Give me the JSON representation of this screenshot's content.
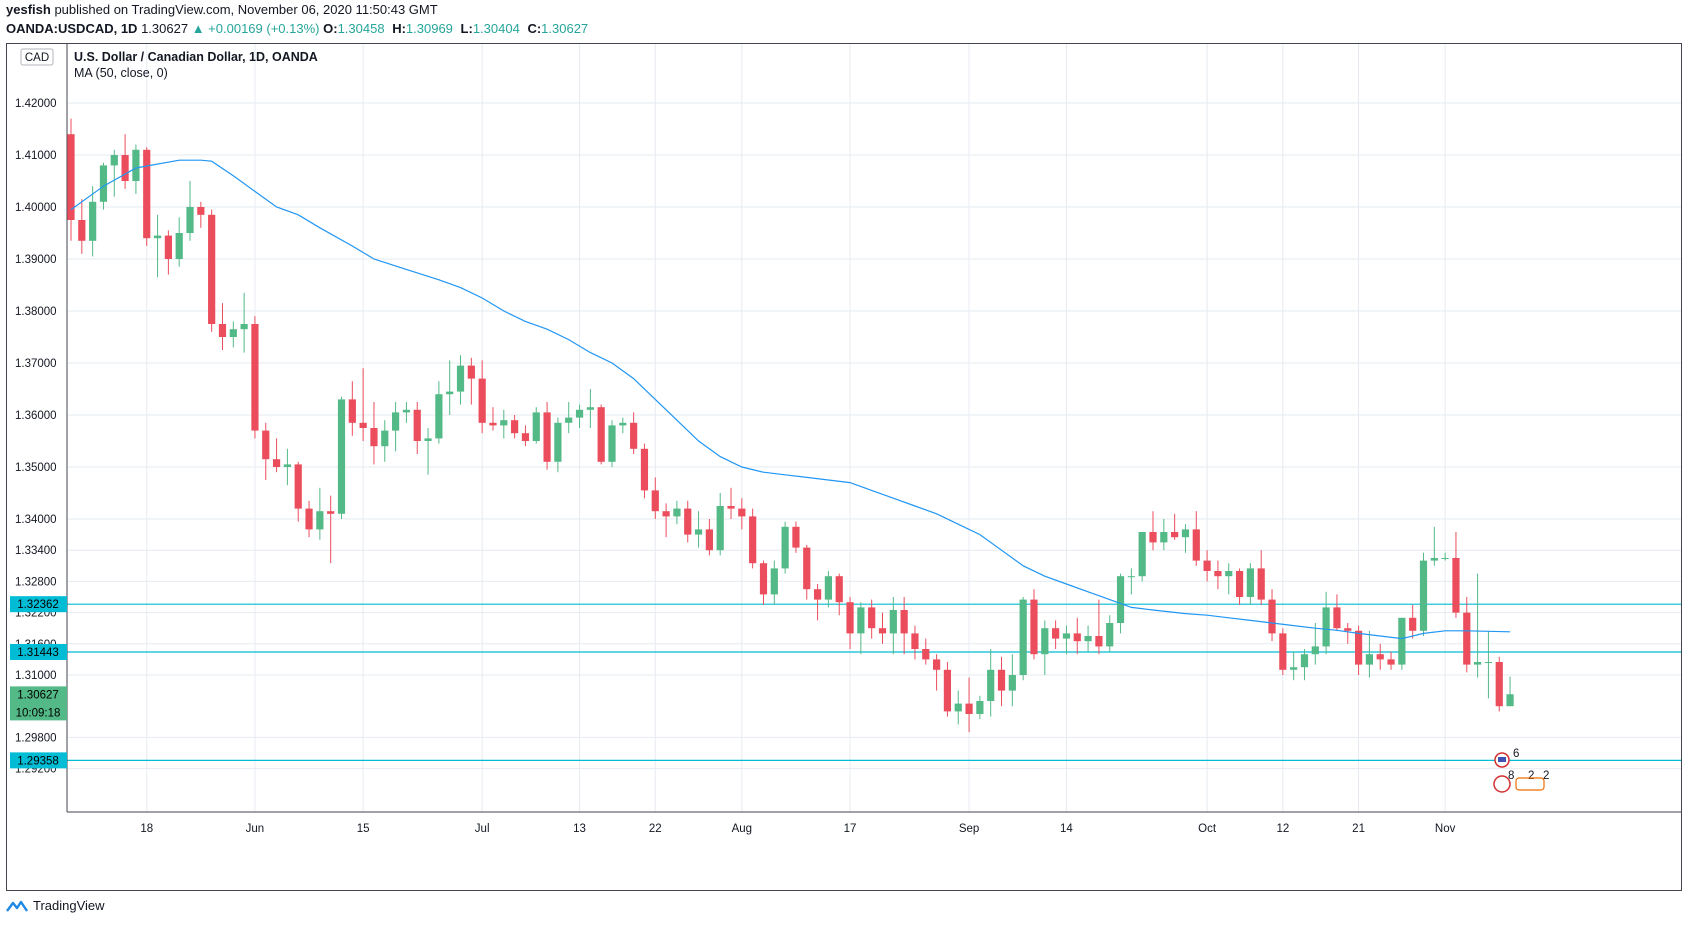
{
  "header": {
    "user": "yesfish",
    "published_text": "published on TradingView.com, November 06, 2020 11:50:43 GMT",
    "symbol": "OANDA:USDCAD, 1D",
    "last": "1.30627",
    "change": "▲ +0.00169 (+0.13%)",
    "o_label": "O:",
    "o_value": "1.30458",
    "h_label": "H:",
    "h_value": "1.30969",
    "l_label": "L:",
    "l_value": "1.30404",
    "c_label": "C:",
    "c_value": "1.30627"
  },
  "footer": {
    "brand": "TradingView"
  },
  "colors": {
    "up": "#53b987",
    "down": "#eb4d5c",
    "ma": "#2196f3",
    "hline": "#00bcd4",
    "price_tag": "#53b987",
    "grid": "#e6ebf1",
    "border": "#434651"
  },
  "chart_data": {
    "type": "candlestick",
    "title": "U.S. Dollar / Canadian Dollar, 1D, OANDA",
    "indicator_label": "MA (50, close, 0)",
    "currency_label": "CAD",
    "y_axis_labels": [
      "1.42000",
      "1.41000",
      "1.40000",
      "1.39000",
      "1.38000",
      "1.37000",
      "1.36000",
      "1.35000",
      "1.34000",
      "1.33400",
      "1.32800",
      "1.32200",
      "1.31600",
      "1.31000",
      "1.29800",
      "1.29200"
    ],
    "y_axis_ticks": [
      1.42,
      1.41,
      1.4,
      1.39,
      1.38,
      1.37,
      1.36,
      1.35,
      1.34,
      1.334,
      1.328,
      1.322,
      1.316,
      1.31,
      1.298,
      1.292
    ],
    "x_axis_labels": [
      {
        "label": "18",
        "index": 7
      },
      {
        "label": "Jun",
        "index": 17
      },
      {
        "label": "15",
        "index": 27
      },
      {
        "label": "Jul",
        "index": 38
      },
      {
        "label": "13",
        "index": 47
      },
      {
        "label": "22",
        "index": 54
      },
      {
        "label": "Aug",
        "index": 62
      },
      {
        "label": "17",
        "index": 72
      },
      {
        "label": "Sep",
        "index": 83
      },
      {
        "label": "14",
        "index": 92
      },
      {
        "label": "Oct",
        "index": 105
      },
      {
        "label": "12",
        "index": 112
      },
      {
        "label": "21",
        "index": 119
      },
      {
        "label": "Nov",
        "index": 127
      }
    ],
    "horizontal_lines": [
      {
        "label": "1.32362",
        "value": 1.32362
      },
      {
        "label": "1.31443",
        "value": 1.31443
      },
      {
        "label": "1.29358",
        "value": 1.29358
      }
    ],
    "last_price": {
      "label": "1.30627",
      "value": 1.30627,
      "countdown": "10:09:18"
    },
    "event_badges": [
      {
        "label": "6"
      },
      {
        "label": "8"
      },
      {
        "label": "2"
      },
      {
        "label": "2"
      }
    ],
    "candles": [
      [
        1.414,
        1.417,
        1.3935,
        1.3975
      ],
      [
        1.3975,
        1.4015,
        1.391,
        1.3935
      ],
      [
        1.3935,
        1.404,
        1.3905,
        1.401
      ],
      [
        1.401,
        1.4085,
        1.3995,
        1.408
      ],
      [
        1.408,
        1.411,
        1.402,
        1.41
      ],
      [
        1.41,
        1.414,
        1.4035,
        1.405
      ],
      [
        1.405,
        1.412,
        1.4025,
        1.411
      ],
      [
        1.411,
        1.4115,
        1.3925,
        1.394
      ],
      [
        1.394,
        1.3985,
        1.3865,
        1.3945
      ],
      [
        1.3945,
        1.3955,
        1.387,
        1.39
      ],
      [
        1.39,
        1.398,
        1.3885,
        1.395
      ],
      [
        1.395,
        1.405,
        1.3935,
        1.4
      ],
      [
        1.4,
        1.401,
        1.396,
        1.3985
      ],
      [
        1.3985,
        1.3995,
        1.376,
        1.3775
      ],
      [
        1.3775,
        1.3815,
        1.3725,
        1.375
      ],
      [
        1.375,
        1.378,
        1.373,
        1.3765
      ],
      [
        1.3765,
        1.3835,
        1.372,
        1.3775
      ],
      [
        1.3775,
        1.379,
        1.3555,
        1.357
      ],
      [
        1.357,
        1.3585,
        1.3475,
        1.3515
      ],
      [
        1.3515,
        1.3555,
        1.349,
        1.35
      ],
      [
        1.35,
        1.3535,
        1.3465,
        1.3505
      ],
      [
        1.3505,
        1.351,
        1.3395,
        1.342
      ],
      [
        1.342,
        1.3435,
        1.3365,
        1.338
      ],
      [
        1.338,
        1.346,
        1.336,
        1.3415
      ],
      [
        1.3415,
        1.3445,
        1.3315,
        1.341
      ],
      [
        1.341,
        1.3635,
        1.34,
        1.363
      ],
      [
        1.363,
        1.3665,
        1.356,
        1.3585
      ],
      [
        1.3585,
        1.369,
        1.355,
        1.3575
      ],
      [
        1.3575,
        1.3625,
        1.3505,
        1.354
      ],
      [
        1.354,
        1.359,
        1.351,
        1.357
      ],
      [
        1.357,
        1.3625,
        1.353,
        1.3605
      ],
      [
        1.3605,
        1.3625,
        1.3585,
        1.361
      ],
      [
        1.361,
        1.3625,
        1.3525,
        1.355
      ],
      [
        1.355,
        1.3575,
        1.3485,
        1.3555
      ],
      [
        1.3555,
        1.3665,
        1.3545,
        1.364
      ],
      [
        1.364,
        1.3705,
        1.36,
        1.3645
      ],
      [
        1.3645,
        1.3715,
        1.362,
        1.3695
      ],
      [
        1.3695,
        1.371,
        1.362,
        1.367
      ],
      [
        1.367,
        1.3705,
        1.3565,
        1.3585
      ],
      [
        1.3585,
        1.3615,
        1.357,
        1.358
      ],
      [
        1.358,
        1.361,
        1.3555,
        1.359
      ],
      [
        1.359,
        1.36,
        1.3555,
        1.3565
      ],
      [
        1.3565,
        1.358,
        1.354,
        1.355
      ],
      [
        1.355,
        1.3615,
        1.3545,
        1.3605
      ],
      [
        1.3605,
        1.3625,
        1.3495,
        1.351
      ],
      [
        1.351,
        1.3595,
        1.349,
        1.3585
      ],
      [
        1.3585,
        1.3625,
        1.3565,
        1.3595
      ],
      [
        1.3595,
        1.362,
        1.3575,
        1.361
      ],
      [
        1.361,
        1.365,
        1.3575,
        1.3615
      ],
      [
        1.3615,
        1.362,
        1.3505,
        1.351
      ],
      [
        1.351,
        1.359,
        1.35,
        1.358
      ],
      [
        1.358,
        1.3595,
        1.3565,
        1.3585
      ],
      [
        1.3585,
        1.3605,
        1.3525,
        1.3535
      ],
      [
        1.3535,
        1.3545,
        1.344,
        1.3455
      ],
      [
        1.3455,
        1.348,
        1.34,
        1.3415
      ],
      [
        1.3415,
        1.343,
        1.3365,
        1.3405
      ],
      [
        1.3405,
        1.3435,
        1.339,
        1.342
      ],
      [
        1.342,
        1.3435,
        1.3355,
        1.337
      ],
      [
        1.337,
        1.3415,
        1.3345,
        1.338
      ],
      [
        1.338,
        1.34,
        1.333,
        1.334
      ],
      [
        1.334,
        1.345,
        1.333,
        1.3425
      ],
      [
        1.3425,
        1.346,
        1.34,
        1.342
      ],
      [
        1.342,
        1.344,
        1.338,
        1.3405
      ],
      [
        1.3405,
        1.342,
        1.3305,
        1.3315
      ],
      [
        1.3315,
        1.332,
        1.3235,
        1.3255
      ],
      [
        1.3255,
        1.332,
        1.3235,
        1.3305
      ],
      [
        1.3305,
        1.3395,
        1.3295,
        1.3385
      ],
      [
        1.3385,
        1.3395,
        1.3335,
        1.3345
      ],
      [
        1.3345,
        1.335,
        1.3245,
        1.3265
      ],
      [
        1.3265,
        1.3275,
        1.3205,
        1.3245
      ],
      [
        1.3245,
        1.33,
        1.323,
        1.329
      ],
      [
        1.329,
        1.3295,
        1.3215,
        1.324
      ],
      [
        1.324,
        1.325,
        1.315,
        1.318
      ],
      [
        1.318,
        1.324,
        1.314,
        1.323
      ],
      [
        1.323,
        1.3245,
        1.317,
        1.319
      ],
      [
        1.319,
        1.322,
        1.316,
        1.318
      ],
      [
        1.318,
        1.325,
        1.314,
        1.3225
      ],
      [
        1.3225,
        1.325,
        1.314,
        1.318
      ],
      [
        1.318,
        1.3195,
        1.313,
        1.315
      ],
      [
        1.315,
        1.317,
        1.312,
        1.313
      ],
      [
        1.313,
        1.314,
        1.307,
        1.311
      ],
      [
        1.311,
        1.3125,
        1.302,
        1.303
      ],
      [
        1.303,
        1.307,
        1.3005,
        1.3045
      ],
      [
        1.3045,
        1.3095,
        1.299,
        1.3025
      ],
      [
        1.3025,
        1.306,
        1.3015,
        1.305
      ],
      [
        1.305,
        1.315,
        1.302,
        1.311
      ],
      [
        1.311,
        1.3135,
        1.304,
        1.307
      ],
      [
        1.307,
        1.314,
        1.304,
        1.31
      ],
      [
        1.31,
        1.325,
        1.309,
        1.3245
      ],
      [
        1.3245,
        1.3265,
        1.313,
        1.314
      ],
      [
        1.314,
        1.3205,
        1.31,
        1.319
      ],
      [
        1.319,
        1.3205,
        1.315,
        1.317
      ],
      [
        1.317,
        1.3195,
        1.314,
        1.318
      ],
      [
        1.318,
        1.321,
        1.314,
        1.3165
      ],
      [
        1.3165,
        1.3195,
        1.3145,
        1.3175
      ],
      [
        1.3175,
        1.3245,
        1.314,
        1.3155
      ],
      [
        1.3155,
        1.3215,
        1.3145,
        1.32
      ],
      [
        1.32,
        1.3295,
        1.318,
        1.329
      ],
      [
        1.329,
        1.3305,
        1.3255,
        1.329
      ],
      [
        1.329,
        1.3375,
        1.328,
        1.3375
      ],
      [
        1.3375,
        1.3415,
        1.334,
        1.3355
      ],
      [
        1.3355,
        1.34,
        1.334,
        1.3375
      ],
      [
        1.3375,
        1.341,
        1.336,
        1.3365
      ],
      [
        1.3365,
        1.339,
        1.3335,
        1.338
      ],
      [
        1.338,
        1.3415,
        1.331,
        1.332
      ],
      [
        1.332,
        1.334,
        1.328,
        1.33
      ],
      [
        1.33,
        1.332,
        1.3265,
        1.329
      ],
      [
        1.329,
        1.3315,
        1.3255,
        1.33
      ],
      [
        1.33,
        1.3305,
        1.3235,
        1.325
      ],
      [
        1.325,
        1.3315,
        1.3235,
        1.3305
      ],
      [
        1.3305,
        1.334,
        1.3235,
        1.3245
      ],
      [
        1.3245,
        1.3265,
        1.3165,
        1.318
      ],
      [
        1.318,
        1.319,
        1.31,
        1.311
      ],
      [
        1.311,
        1.3145,
        1.309,
        1.3115
      ],
      [
        1.3115,
        1.315,
        1.309,
        1.314
      ],
      [
        1.314,
        1.32,
        1.312,
        1.3155
      ],
      [
        1.3155,
        1.326,
        1.314,
        1.323
      ],
      [
        1.323,
        1.3255,
        1.3185,
        1.319
      ],
      [
        1.319,
        1.32,
        1.316,
        1.3185
      ],
      [
        1.3185,
        1.3195,
        1.31,
        1.312
      ],
      [
        1.312,
        1.3185,
        1.3095,
        1.314
      ],
      [
        1.314,
        1.316,
        1.311,
        1.313
      ],
      [
        1.313,
        1.3145,
        1.311,
        1.312
      ],
      [
        1.312,
        1.321,
        1.311,
        1.321
      ],
      [
        1.321,
        1.3235,
        1.317,
        1.3185
      ],
      [
        1.3185,
        1.3335,
        1.3175,
        1.332
      ],
      [
        1.332,
        1.3385,
        1.331,
        1.3325
      ],
      [
        1.3325,
        1.3335,
        1.332,
        1.3325
      ],
      [
        1.3325,
        1.3375,
        1.321,
        1.322
      ],
      [
        1.322,
        1.325,
        1.3105,
        1.312
      ],
      [
        1.312,
        1.3295,
        1.3095,
        1.3125
      ],
      [
        1.3125,
        1.3185,
        1.3055,
        1.3125
      ],
      [
        1.3125,
        1.3135,
        1.303,
        1.304
      ],
      [
        1.304,
        1.3097,
        1.304,
        1.3063
      ]
    ],
    "ma50": [
      [
        0,
        1.3995
      ],
      [
        3,
        1.404
      ],
      [
        6,
        1.4075
      ],
      [
        10,
        1.409
      ],
      [
        12,
        1.409
      ],
      [
        13,
        1.4088
      ],
      [
        15,
        1.406
      ],
      [
        17,
        1.403
      ],
      [
        19,
        1.4
      ],
      [
        21,
        1.3985
      ],
      [
        23,
        1.396
      ],
      [
        26,
        1.3925
      ],
      [
        28,
        1.39
      ],
      [
        31,
        1.388
      ],
      [
        34,
        1.386
      ],
      [
        36,
        1.3845
      ],
      [
        38,
        1.3825
      ],
      [
        40,
        1.38
      ],
      [
        42,
        1.378
      ],
      [
        44,
        1.3765
      ],
      [
        46,
        1.3745
      ],
      [
        48,
        1.372
      ],
      [
        50,
        1.37
      ],
      [
        52,
        1.367
      ],
      [
        54,
        1.363
      ],
      [
        56,
        1.359
      ],
      [
        58,
        1.355
      ],
      [
        60,
        1.352
      ],
      [
        62,
        1.35
      ],
      [
        64,
        1.349
      ],
      [
        66,
        1.3485
      ],
      [
        68,
        1.348
      ],
      [
        70,
        1.3475
      ],
      [
        72,
        1.347
      ],
      [
        74,
        1.3455
      ],
      [
        76,
        1.344
      ],
      [
        78,
        1.3425
      ],
      [
        80,
        1.341
      ],
      [
        82,
        1.339
      ],
      [
        84,
        1.337
      ],
      [
        86,
        1.334
      ],
      [
        88,
        1.331
      ],
      [
        90,
        1.329
      ],
      [
        92,
        1.3275
      ],
      [
        94,
        1.326
      ],
      [
        96,
        1.3245
      ],
      [
        98,
        1.323
      ],
      [
        100,
        1.3225
      ],
      [
        103,
        1.3218
      ],
      [
        105,
        1.3215
      ],
      [
        107,
        1.321
      ],
      [
        109,
        1.3205
      ],
      [
        111,
        1.32
      ],
      [
        113,
        1.3195
      ],
      [
        115,
        1.319
      ],
      [
        117,
        1.3186
      ],
      [
        119,
        1.318
      ],
      [
        121,
        1.3175
      ],
      [
        123,
        1.317
      ],
      [
        125,
        1.318
      ],
      [
        127,
        1.3185
      ],
      [
        129,
        1.3185
      ],
      [
        131,
        1.3184
      ],
      [
        133,
        1.3183
      ]
    ]
  }
}
